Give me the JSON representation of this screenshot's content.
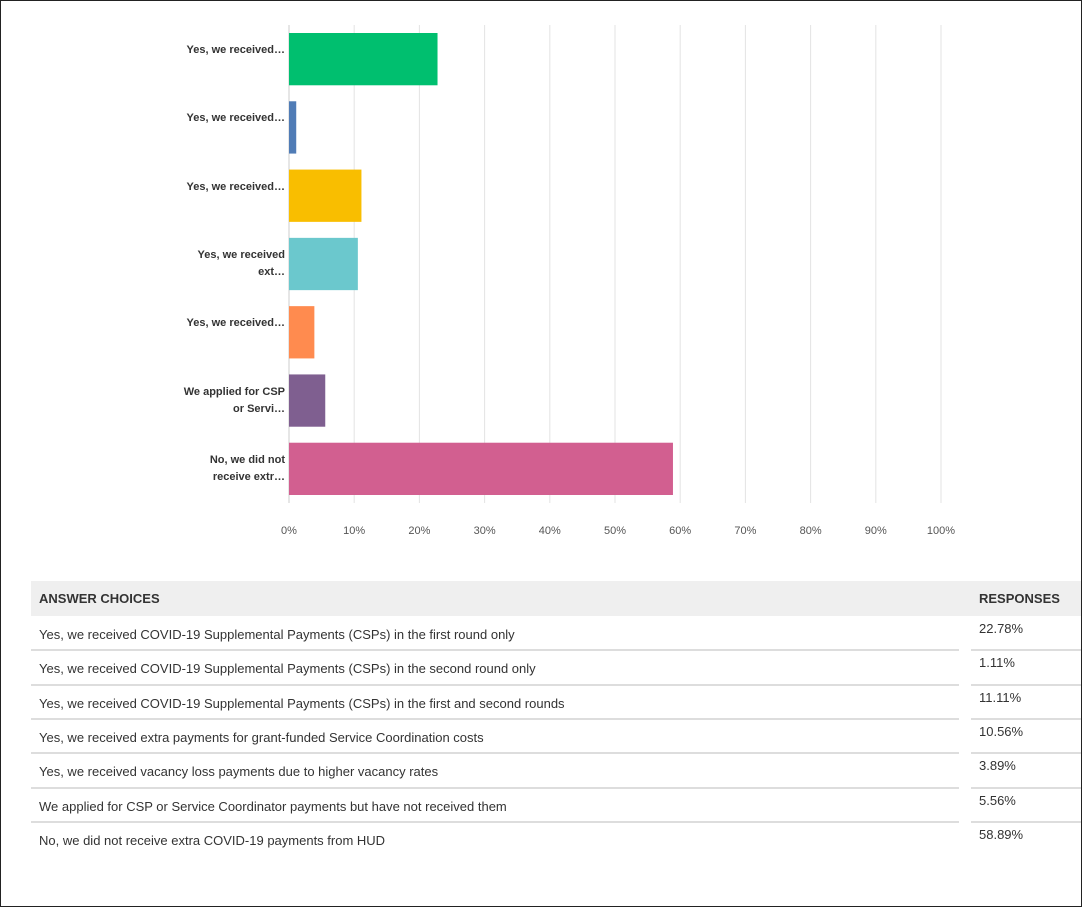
{
  "chart_data": {
    "type": "bar",
    "orientation": "horizontal",
    "categories": [
      "Yes, we received…",
      "Yes, we received…",
      "Yes, we received…",
      "Yes, we received ext…",
      "Yes, we received…",
      "We applied for CSP or Servi…",
      "No, we did not receive extr…"
    ],
    "values": [
      22.78,
      1.11,
      11.11,
      10.56,
      3.89,
      5.56,
      58.89
    ],
    "colors": [
      "#00bf6f",
      "#507cb6",
      "#f9be00",
      "#6bc8cd",
      "#ff8b4f",
      "#7f5f90",
      "#d25f90"
    ],
    "xlim": [
      0,
      100
    ],
    "xticks": [
      {
        "value": 0,
        "label": "0%"
      },
      {
        "value": 10,
        "label": "10%"
      },
      {
        "value": 20,
        "label": "20%"
      },
      {
        "value": 30,
        "label": "30%"
      },
      {
        "value": 40,
        "label": "40%"
      },
      {
        "value": 50,
        "label": "50%"
      },
      {
        "value": 60,
        "label": "60%"
      },
      {
        "value": 70,
        "label": "70%"
      },
      {
        "value": 80,
        "label": "80%"
      },
      {
        "value": 90,
        "label": "90%"
      },
      {
        "value": 100,
        "label": "100%"
      }
    ],
    "grid": true
  },
  "table": {
    "headers": [
      "ANSWER CHOICES",
      "RESPONSES"
    ],
    "rows": [
      [
        "Yes, we received COVID-19 Supplemental Payments (CSPs) in the first round only",
        "22.78%"
      ],
      [
        "Yes, we received COVID-19 Supplemental Payments (CSPs) in the second round only",
        "1.11%"
      ],
      [
        "Yes, we received COVID-19 Supplemental Payments (CSPs) in the first and second rounds",
        "11.11%"
      ],
      [
        "Yes, we received extra payments for grant-funded Service Coordination costs",
        "10.56%"
      ],
      [
        "Yes, we received vacancy loss payments due to higher vacancy rates",
        "3.89%"
      ],
      [
        "We applied for CSP or Service Coordinator payments but have not received them",
        "5.56%"
      ],
      [
        "No, we did not receive extra COVID-19 payments from HUD",
        "58.89%"
      ]
    ]
  }
}
